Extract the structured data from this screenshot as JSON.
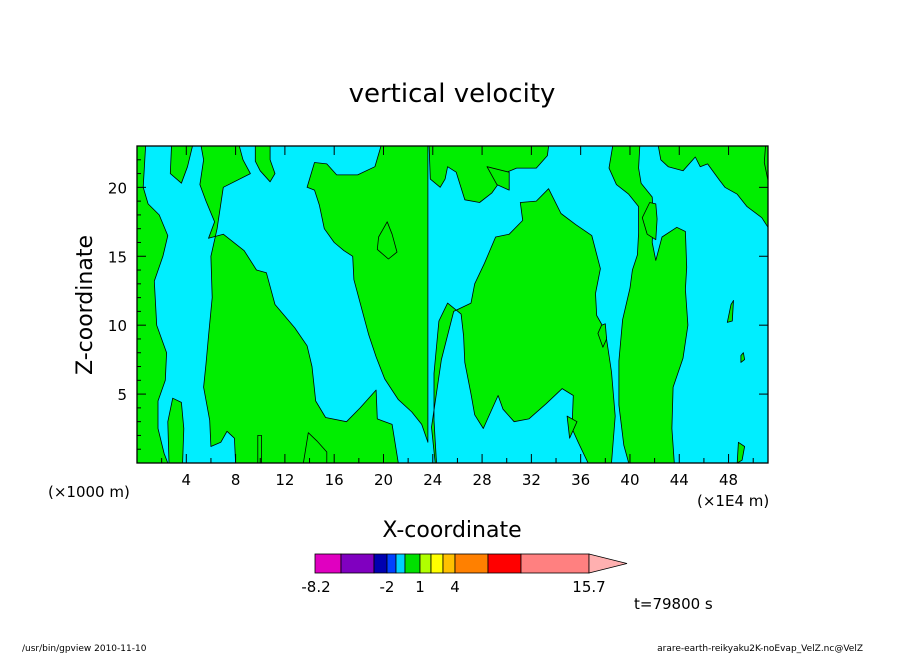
{
  "chart_data": {
    "type": "heatmap",
    "title": "vertical velocity",
    "xlabel": "X-coordinate",
    "ylabel": "Z-coordinate",
    "x_unit_left": "(×1000 m)",
    "x_unit_right": "(×1E4 m)",
    "xlim": [
      0,
      51.2
    ],
    "ylim": [
      0,
      23
    ],
    "x_ticks": [
      "4",
      "8",
      "12",
      "16",
      "20",
      "24",
      "28",
      "32",
      "36",
      "40",
      "44",
      "48"
    ],
    "y_ticks": [
      "5",
      "10",
      "15",
      "20"
    ],
    "fill_colors": {
      "negative": "#00eeff",
      "positive": "#00ee00"
    },
    "colorbar": {
      "labels": [
        "-8.2",
        "-2",
        "1",
        "4",
        "15.7"
      ],
      "colors": [
        "#e000c0",
        "#8000c0",
        "#0000b0",
        "#0040ff",
        "#00d0ff",
        "#00e000",
        "#b0ff00",
        "#ffff00",
        "#ffc000",
        "#ff8000",
        "#ff0000",
        "#ff8080",
        "#ffb0b0"
      ]
    },
    "time_label": "t=79800 s"
  },
  "footer": {
    "left": "/usr/bin/gpview   2010-11-10",
    "right": "arare-earth-reikyaku2K-noEvap_VelZ.nc@VelZ"
  }
}
